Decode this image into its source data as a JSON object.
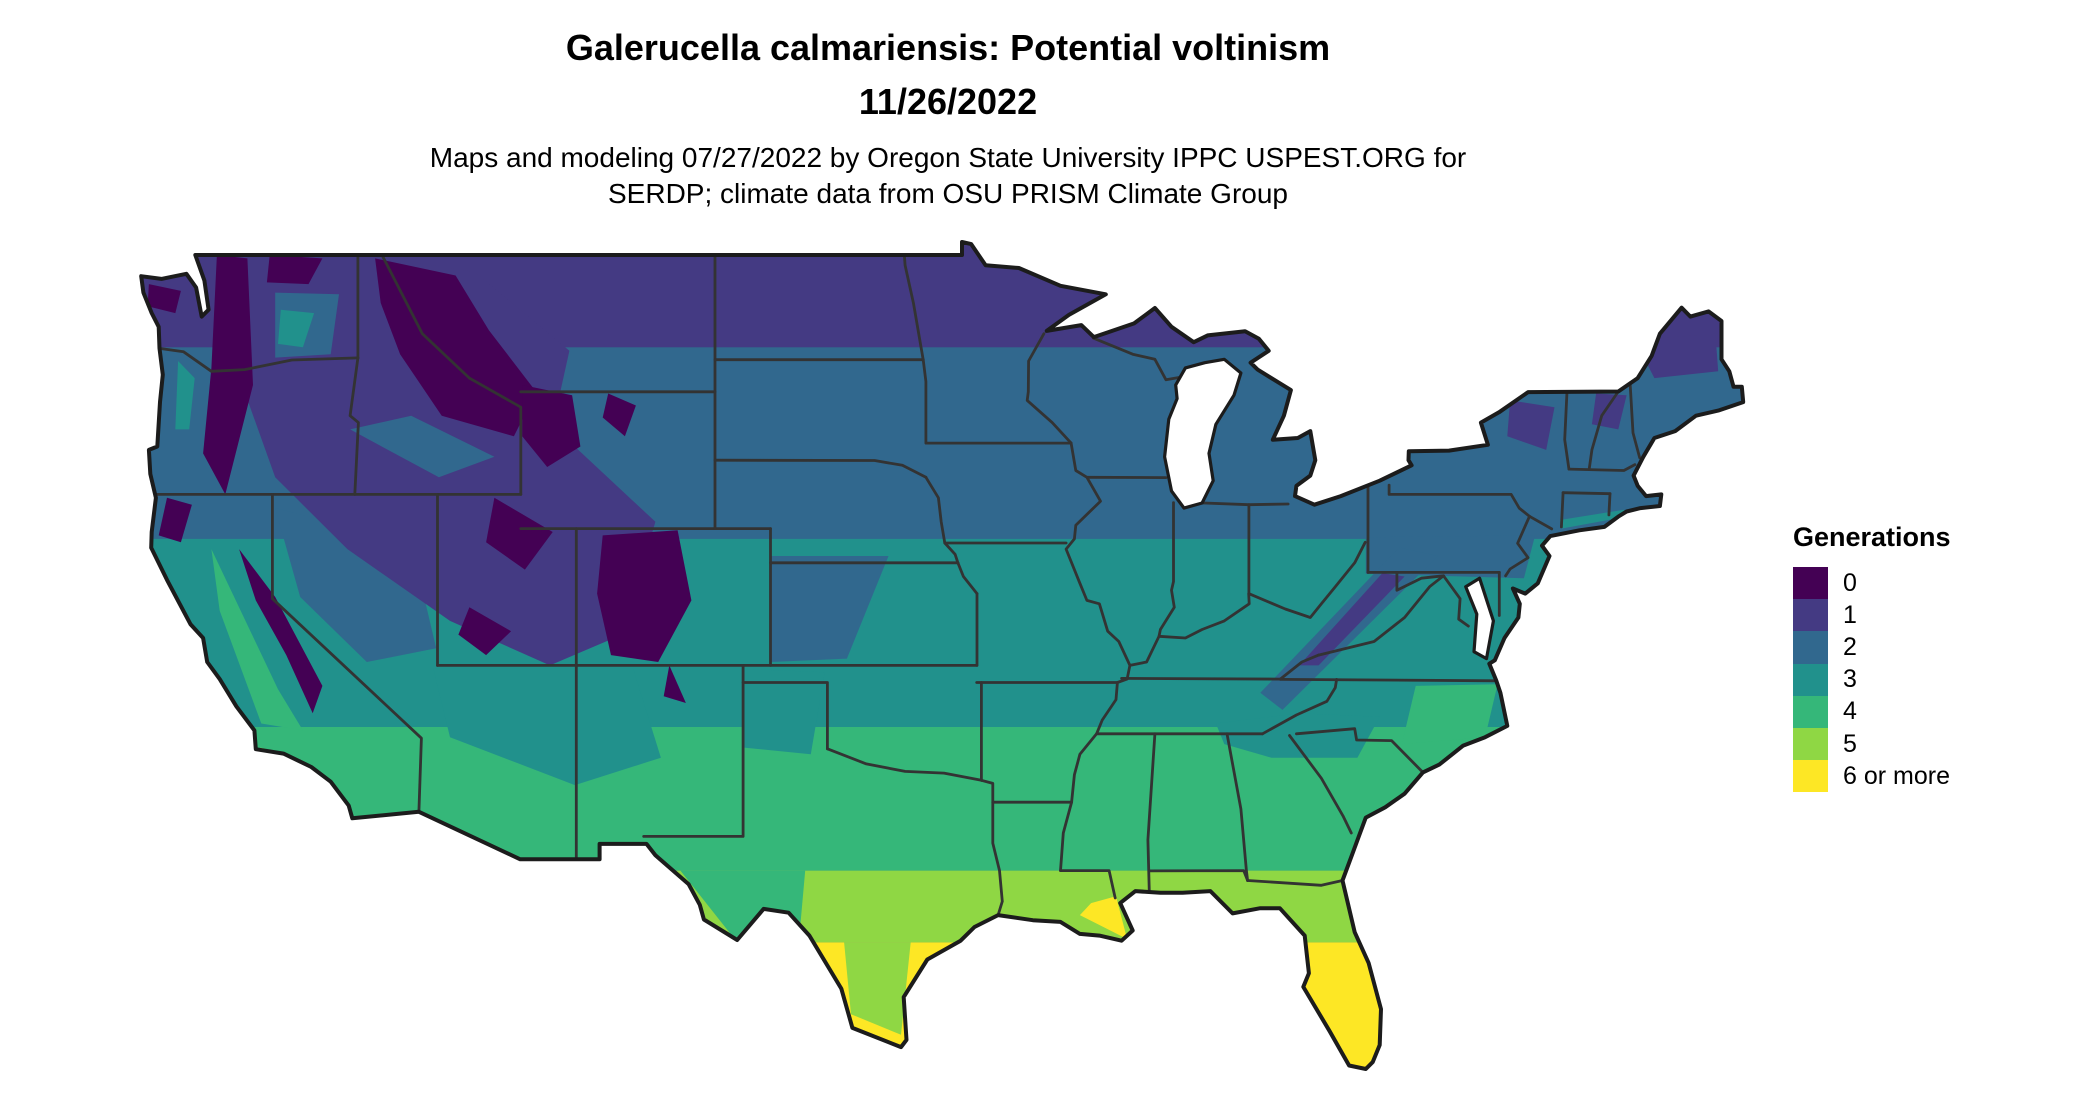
{
  "header": {
    "title_line1": "Galerucella calmariensis: Potential voltinism",
    "title_line2": "11/26/2022",
    "subtitle_line1": "Maps and modeling 07/27/2022 by Oregon State University IPPC USPEST.ORG for",
    "subtitle_line2": "SERDP; climate data from OSU PRISM Climate Group"
  },
  "legend": {
    "title": "Generations",
    "entries": [
      {
        "label": "0",
        "color": "#440154"
      },
      {
        "label": "1",
        "color": "#443A83"
      },
      {
        "label": "2",
        "color": "#31688E"
      },
      {
        "label": "3",
        "color": "#21918C"
      },
      {
        "label": "4",
        "color": "#35B779"
      },
      {
        "label": "5",
        "color": "#8FD744"
      },
      {
        "label": "6 or more",
        "color": "#FDE725"
      }
    ]
  },
  "map": {
    "outline_color": "#1c1c1c",
    "state_border_color": "#333333",
    "water_color": "#ffffff",
    "background_color": "#ffffff"
  }
}
